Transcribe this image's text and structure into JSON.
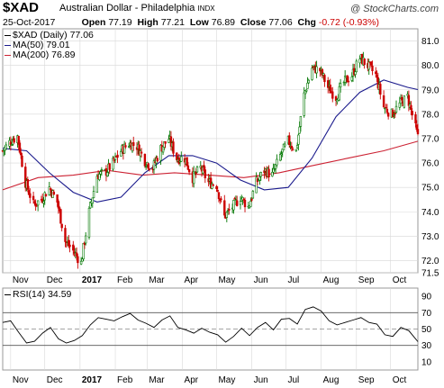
{
  "header": {
    "symbol": "$XAD",
    "name": "Australian Dollar - Philadelphia",
    "exchange": "INDX",
    "brand": "@ StockCharts.com",
    "date": "25-Oct-2017",
    "open_label": "Open",
    "open": "77.19",
    "high_label": "High",
    "high": "77.21",
    "low_label": "Low",
    "low": "76.89",
    "close_label": "Close",
    "close": "77.06",
    "chg_label": "Chg",
    "chg": "-0.72 (-0.93%)"
  },
  "legend": {
    "price": "$XAD (Daily) 77.06",
    "ma50": "MA(50) 79.01",
    "ma200": "MA(200) 76.89",
    "rsi": "RSI(14) 34.59"
  },
  "colors": {
    "up": "#007700",
    "down": "#cc0000",
    "ma50": "#1a1a8c",
    "ma200": "#cc2233",
    "grid": "#d8d8d8",
    "frame": "#999999"
  },
  "chart_data": [
    {
      "type": "candlestick",
      "title": "$XAD Australian Dollar - Philadelphia",
      "ylim": [
        71.5,
        81.5
      ],
      "y_ticks": [
        "71.5",
        "72.0",
        "73.0",
        "74.0",
        "75.0",
        "76.0",
        "77.0",
        "78.0",
        "79.0",
        "80.0",
        "81.0"
      ],
      "x_ticks": [
        "Nov",
        "Dec",
        "2017",
        "Feb",
        "Mar",
        "Apr",
        "May",
        "Jun",
        "Jul",
        "Aug",
        "Sep",
        "Oct"
      ],
      "x_tick_dates": [
        "2016-11-01",
        "2016-12-01",
        "2017-01-01",
        "2017-02-01",
        "2017-03-01",
        "2017-04-01",
        "2017-05-01",
        "2017-06-01",
        "2017-07-01",
        "2017-08-01",
        "2017-09-01",
        "2017-10-01"
      ],
      "date_range": [
        "2016-10-25",
        "2017-10-25"
      ],
      "series": [
        {
          "name": "$XAD (Daily)",
          "style": "ohlc",
          "close_path_approx": [
            [
              "2016-10-25",
              76.5
            ],
            [
              "2016-11-01",
              76.9
            ],
            [
              "2016-11-07",
              77.1
            ],
            [
              "2016-11-14",
              75.2
            ],
            [
              "2016-11-21",
              74.3
            ],
            [
              "2016-11-28",
              74.5
            ],
            [
              "2016-12-05",
              75.0
            ],
            [
              "2016-12-12",
              74.4
            ],
            [
              "2016-12-19",
              72.8
            ],
            [
              "2016-12-26",
              72.4
            ],
            [
              "2017-01-02",
              71.9
            ],
            [
              "2017-01-09",
              74.0
            ],
            [
              "2017-01-16",
              75.5
            ],
            [
              "2017-01-23",
              75.6
            ],
            [
              "2017-01-30",
              76.0
            ],
            [
              "2017-02-06",
              76.5
            ],
            [
              "2017-02-13",
              76.8
            ],
            [
              "2017-02-20",
              76.7
            ],
            [
              "2017-02-27",
              76.1
            ],
            [
              "2017-03-06",
              75.8
            ],
            [
              "2017-03-13",
              76.6
            ],
            [
              "2017-03-20",
              77.0
            ],
            [
              "2017-03-27",
              76.2
            ],
            [
              "2017-04-03",
              76.2
            ],
            [
              "2017-04-10",
              75.4
            ],
            [
              "2017-04-17",
              75.8
            ],
            [
              "2017-04-24",
              75.2
            ],
            [
              "2017-05-01",
              75.1
            ],
            [
              "2017-05-08",
              73.8
            ],
            [
              "2017-05-15",
              74.2
            ],
            [
              "2017-05-22",
              74.6
            ],
            [
              "2017-05-29",
              74.2
            ],
            [
              "2017-06-05",
              75.2
            ],
            [
              "2017-06-12",
              75.7
            ],
            [
              "2017-06-19",
              75.5
            ],
            [
              "2017-06-26",
              76.3
            ],
            [
              "2017-07-03",
              76.9
            ],
            [
              "2017-07-10",
              76.5
            ],
            [
              "2017-07-17",
              78.8
            ],
            [
              "2017-07-24",
              79.9
            ],
            [
              "2017-07-31",
              79.8
            ],
            [
              "2017-08-07",
              79.1
            ],
            [
              "2017-08-14",
              78.7
            ],
            [
              "2017-08-21",
              79.3
            ],
            [
              "2017-08-28",
              79.6
            ],
            [
              "2017-09-04",
              80.3
            ],
            [
              "2017-09-11",
              80.0
            ],
            [
              "2017-09-18",
              79.6
            ],
            [
              "2017-09-25",
              78.3
            ],
            [
              "2017-10-02",
              78.0
            ],
            [
              "2017-10-09",
              78.4
            ],
            [
              "2017-10-16",
              78.7
            ],
            [
              "2017-10-25",
              77.06
            ]
          ]
        },
        {
          "name": "MA(50)",
          "points": [
            [
              "2016-10-25",
              76.6
            ],
            [
              "2016-11-15",
              76.5
            ],
            [
              "2016-12-05",
              75.6
            ],
            [
              "2016-12-26",
              74.8
            ],
            [
              "2017-01-16",
              74.4
            ],
            [
              "2017-02-06",
              74.6
            ],
            [
              "2017-02-27",
              75.6
            ],
            [
              "2017-03-20",
              76.3
            ],
            [
              "2017-04-10",
              76.3
            ],
            [
              "2017-05-01",
              76.0
            ],
            [
              "2017-05-22",
              75.3
            ],
            [
              "2017-06-12",
              74.9
            ],
            [
              "2017-07-03",
              75.0
            ],
            [
              "2017-07-24",
              76.2
            ],
            [
              "2017-08-14",
              77.9
            ],
            [
              "2017-09-04",
              78.9
            ],
            [
              "2017-09-25",
              79.4
            ],
            [
              "2017-10-16",
              79.1
            ],
            [
              "2017-10-25",
              79.01
            ]
          ]
        },
        {
          "name": "MA(200)",
          "points": [
            [
              "2016-10-25",
              74.9
            ],
            [
              "2016-11-25",
              75.4
            ],
            [
              "2016-12-26",
              75.5
            ],
            [
              "2017-01-25",
              75.7
            ],
            [
              "2017-02-25",
              75.5
            ],
            [
              "2017-03-25",
              75.6
            ],
            [
              "2017-04-25",
              75.5
            ],
            [
              "2017-05-25",
              75.4
            ],
            [
              "2017-06-25",
              75.6
            ],
            [
              "2017-07-25",
              75.9
            ],
            [
              "2017-08-25",
              76.2
            ],
            [
              "2017-09-25",
              76.5
            ],
            [
              "2017-10-25",
              76.89
            ]
          ]
        }
      ]
    },
    {
      "type": "line",
      "title": "RSI(14) 34.59",
      "ylim": [
        0,
        100
      ],
      "y_ticks": [
        "10",
        "30",
        "50",
        "70",
        "90"
      ],
      "x_ticks": [
        "Nov",
        "Dec",
        "2017",
        "Feb",
        "Mar",
        "Apr",
        "May",
        "Jun",
        "Jul",
        "Aug",
        "Sep",
        "Oct"
      ],
      "reference_lines": [
        30,
        50,
        70
      ],
      "series": [
        {
          "name": "RSI(14)",
          "points": [
            [
              "2016-10-25",
              58
            ],
            [
              "2016-11-01",
              60
            ],
            [
              "2016-11-08",
              46
            ],
            [
              "2016-11-15",
              33
            ],
            [
              "2016-11-22",
              35
            ],
            [
              "2016-11-29",
              45
            ],
            [
              "2016-12-06",
              52
            ],
            [
              "2016-12-13",
              38
            ],
            [
              "2016-12-20",
              33
            ],
            [
              "2016-12-27",
              36
            ],
            [
              "2017-01-03",
              42
            ],
            [
              "2017-01-10",
              55
            ],
            [
              "2017-01-17",
              64
            ],
            [
              "2017-01-24",
              62
            ],
            [
              "2017-01-31",
              60
            ],
            [
              "2017-02-07",
              65
            ],
            [
              "2017-02-14",
              69
            ],
            [
              "2017-02-21",
              61
            ],
            [
              "2017-02-28",
              57
            ],
            [
              "2017-03-07",
              52
            ],
            [
              "2017-03-14",
              61
            ],
            [
              "2017-03-21",
              66
            ],
            [
              "2017-03-28",
              52
            ],
            [
              "2017-04-04",
              49
            ],
            [
              "2017-04-11",
              45
            ],
            [
              "2017-04-18",
              51
            ],
            [
              "2017-04-25",
              46
            ],
            [
              "2017-05-02",
              43
            ],
            [
              "2017-05-09",
              34
            ],
            [
              "2017-05-16",
              41
            ],
            [
              "2017-05-23",
              51
            ],
            [
              "2017-05-30",
              42
            ],
            [
              "2017-06-06",
              52
            ],
            [
              "2017-06-13",
              58
            ],
            [
              "2017-06-20",
              49
            ],
            [
              "2017-06-27",
              62
            ],
            [
              "2017-07-04",
              63
            ],
            [
              "2017-07-11",
              56
            ],
            [
              "2017-07-18",
              74
            ],
            [
              "2017-07-25",
              77
            ],
            [
              "2017-08-01",
              72
            ],
            [
              "2017-08-08",
              60
            ],
            [
              "2017-08-15",
              55
            ],
            [
              "2017-08-22",
              58
            ],
            [
              "2017-08-29",
              61
            ],
            [
              "2017-09-05",
              64
            ],
            [
              "2017-09-12",
              58
            ],
            [
              "2017-09-19",
              56
            ],
            [
              "2017-09-26",
              43
            ],
            [
              "2017-10-03",
              41
            ],
            [
              "2017-10-10",
              52
            ],
            [
              "2017-10-17",
              48
            ],
            [
              "2017-10-25",
              34.59
            ]
          ]
        }
      ]
    }
  ]
}
